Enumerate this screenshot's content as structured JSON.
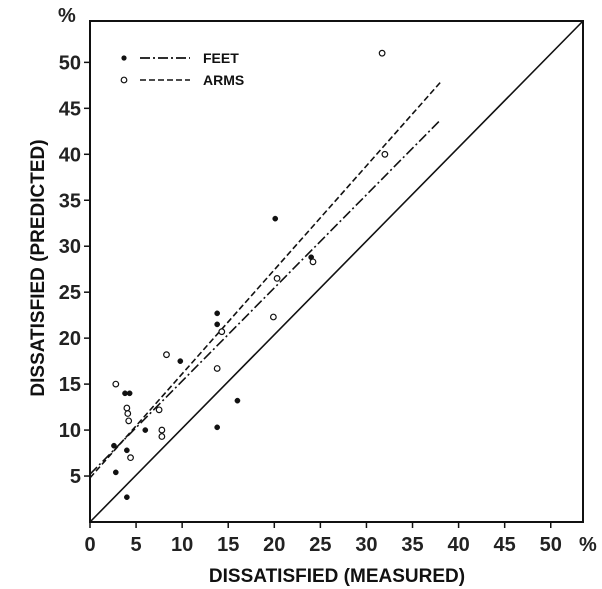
{
  "chart_data": {
    "type": "scatter",
    "xlabel": "DISSATISFIED (MEASURED)",
    "ylabel": "DISSATISFIED (PREDICTED)",
    "x_unit": "%",
    "y_unit": "%",
    "xlim": [
      0,
      53.5
    ],
    "ylim": [
      0,
      54.5
    ],
    "x_ticks": [
      "0",
      "5",
      "10",
      "15",
      "20",
      "25",
      "30",
      "35",
      "40",
      "45",
      "50"
    ],
    "y_ticks": [
      "5",
      "10",
      "15",
      "20",
      "25",
      "30",
      "35",
      "40",
      "45",
      "50"
    ],
    "grid": false,
    "legend_position": "top-left",
    "series": [
      {
        "name": "FEET",
        "marker": "filled-circle",
        "line": "dash-dot",
        "line_x": [
          0,
          38
        ],
        "line_y": [
          5.2,
          43.7
        ],
        "points": [
          [
            2.6,
            8.3
          ],
          [
            2.8,
            5.4
          ],
          [
            3.8,
            14.0
          ],
          [
            4.3,
            14.0
          ],
          [
            4.0,
            2.7
          ],
          [
            4.0,
            7.8
          ],
          [
            6.0,
            10.0
          ],
          [
            9.8,
            17.5
          ],
          [
            13.8,
            22.7
          ],
          [
            13.8,
            21.5
          ],
          [
            13.8,
            10.3
          ],
          [
            16.0,
            13.2
          ],
          [
            20.1,
            33.0
          ],
          [
            24.0,
            28.8
          ]
        ]
      },
      {
        "name": "ARMS",
        "marker": "open-circle",
        "line": "dashed",
        "line_x": [
          0,
          38
        ],
        "line_y": [
          4.8,
          47.8
        ],
        "points": [
          [
            2.8,
            15.0
          ],
          [
            4.0,
            12.4
          ],
          [
            4.1,
            11.8
          ],
          [
            4.2,
            11.0
          ],
          [
            4.4,
            7.0
          ],
          [
            7.5,
            12.2
          ],
          [
            7.8,
            10.0
          ],
          [
            7.8,
            9.3
          ],
          [
            8.3,
            18.2
          ],
          [
            13.8,
            16.7
          ],
          [
            14.3,
            20.7
          ],
          [
            19.9,
            22.3
          ],
          [
            20.3,
            26.5
          ],
          [
            24.2,
            28.3
          ],
          [
            31.7,
            51.0
          ],
          [
            32.0,
            40.0
          ]
        ]
      }
    ],
    "reference_line": {
      "type": "identity",
      "x": [
        0,
        53.5
      ],
      "y": [
        0,
        54.5
      ]
    }
  }
}
